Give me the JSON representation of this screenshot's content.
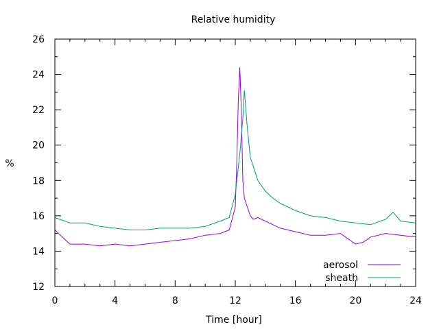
{
  "chart_data": {
    "type": "line",
    "title": "Relative humidity",
    "xlabel": "Time [hour]",
    "ylabel": "%",
    "xlim": [
      0,
      24
    ],
    "ylim": [
      12,
      26
    ],
    "xticks": [
      0,
      4,
      8,
      12,
      16,
      20,
      24
    ],
    "yticks": [
      12,
      14,
      16,
      18,
      20,
      22,
      24,
      26
    ],
    "grid": false,
    "legend_position": "bottom-right",
    "series": [
      {
        "name": "aerosol",
        "color": "#9400d3",
        "x": [
          0,
          1,
          2,
          3,
          4,
          5,
          6,
          7,
          8,
          9,
          10,
          11,
          11.6,
          12,
          12.1,
          12.2,
          12.3,
          12.4,
          12.5,
          12.6,
          12.8,
          13,
          13.2,
          13.5,
          14,
          14.5,
          15,
          16,
          17,
          18,
          19,
          20,
          20.5,
          21,
          22,
          23,
          24
        ],
        "values": [
          15.2,
          14.4,
          14.4,
          14.3,
          14.4,
          14.3,
          14.4,
          14.5,
          14.6,
          14.7,
          14.9,
          15.0,
          15.2,
          16.5,
          19.0,
          22.5,
          24.4,
          22.0,
          18.0,
          17.0,
          16.5,
          16.0,
          15.8,
          15.9,
          15.7,
          15.5,
          15.3,
          15.1,
          14.9,
          14.9,
          15.0,
          14.4,
          14.5,
          14.8,
          15.0,
          14.9,
          14.8
        ]
      },
      {
        "name": "sheath",
        "color": "#009e73",
        "x": [
          0,
          1,
          2,
          3,
          4,
          5,
          6,
          7,
          8,
          9,
          10,
          11,
          11.6,
          12,
          12.3,
          12.5,
          12.6,
          12.8,
          13,
          13.2,
          13.5,
          14,
          14.5,
          15,
          15.5,
          16,
          17,
          18,
          19,
          20,
          21,
          22,
          22.5,
          23,
          24
        ],
        "values": [
          15.9,
          15.6,
          15.6,
          15.4,
          15.3,
          15.2,
          15.2,
          15.3,
          15.3,
          15.3,
          15.4,
          15.7,
          15.9,
          17.2,
          19.5,
          21.5,
          23.1,
          21.0,
          19.3,
          18.8,
          18.0,
          17.4,
          17.0,
          16.7,
          16.5,
          16.3,
          16.0,
          15.9,
          15.7,
          15.6,
          15.5,
          15.8,
          16.2,
          15.7,
          15.6
        ]
      }
    ]
  }
}
